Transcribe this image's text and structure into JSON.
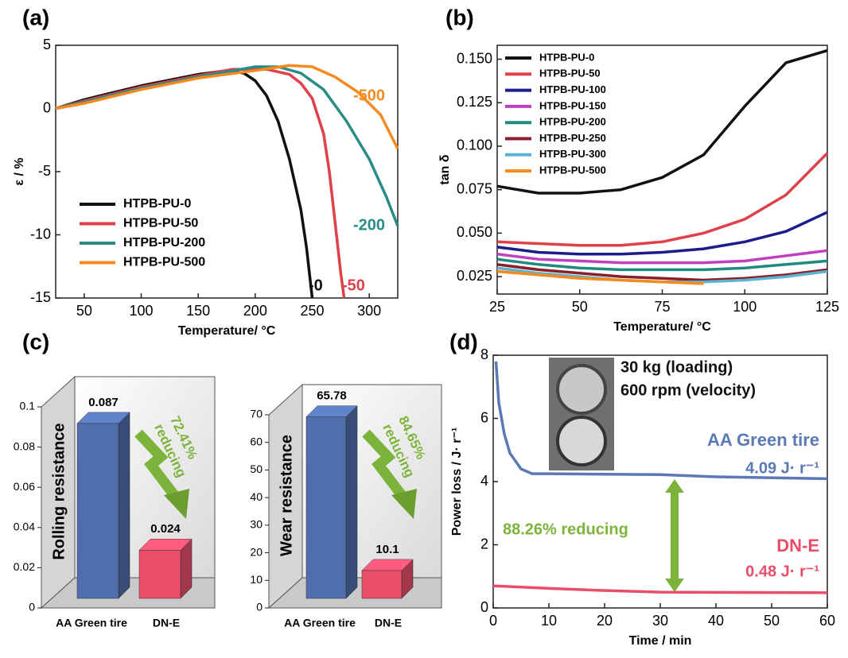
{
  "chart_data": [
    {
      "type": "line",
      "label": "(a)",
      "x_label": "Temperature/ °C",
      "y_label": "ε / %",
      "xlim": [
        25,
        325
      ],
      "xticks": [
        50,
        100,
        150,
        200,
        250,
        300
      ],
      "ylim": [
        -15,
        5
      ],
      "yticks": [
        -15,
        -10,
        -5,
        0,
        5
      ],
      "legend": "lower left",
      "series": [
        {
          "name": "HTPB-PU-0",
          "color": "#111111",
          "x": [
            25,
            50,
            100,
            150,
            175,
            190,
            200,
            210,
            220,
            230,
            240,
            245,
            250
          ],
          "values": [
            0,
            0.7,
            1.8,
            2.7,
            3.0,
            2.8,
            2.2,
            1.0,
            -1,
            -4,
            -8,
            -11,
            -15
          ]
        },
        {
          "name": "HTPB-PU-50",
          "color": "#e0404a",
          "x": [
            25,
            50,
            100,
            150,
            180,
            210,
            230,
            240,
            250,
            260,
            265,
            270,
            275,
            278
          ],
          "values": [
            0,
            0.6,
            1.7,
            2.6,
            3.1,
            3.1,
            2.7,
            2.0,
            0.8,
            -2,
            -5,
            -9,
            -13,
            -15
          ]
        },
        {
          "name": "HTPB-PU-200",
          "color": "#2a8c86",
          "x": [
            25,
            50,
            100,
            150,
            200,
            220,
            240,
            260,
            280,
            300,
            315,
            325
          ],
          "values": [
            0,
            0.5,
            1.6,
            2.5,
            3.3,
            3.3,
            2.8,
            1.5,
            -1,
            -4,
            -7,
            -9.3
          ]
        },
        {
          "name": "HTPB-PU-500",
          "color": "#f58a1f",
          "x": [
            25,
            50,
            100,
            150,
            200,
            230,
            250,
            270,
            290,
            310,
            325
          ],
          "values": [
            0,
            0.4,
            1.5,
            2.4,
            3.0,
            3.4,
            3.3,
            2.5,
            1.3,
            -0.5,
            -3.2
          ]
        }
      ],
      "annotations": [
        {
          "text": "-0",
          "color": "#111111"
        },
        {
          "text": "-50",
          "color": "#e0404a"
        },
        {
          "text": "-200",
          "color": "#2a8c86"
        },
        {
          "text": "-500",
          "color": "#f58a1f"
        }
      ]
    },
    {
      "type": "line",
      "label": "(b)",
      "x_label": "Temperature/ °C",
      "y_label": "tan δ",
      "xlim": [
        25,
        125
      ],
      "xticks": [
        25,
        50,
        75,
        100,
        125
      ],
      "ylim": [
        0.015,
        0.158
      ],
      "yticks": [
        0.025,
        {
          "value": 0.05,
          "label": "0.050"
        },
        0.075,
        {
          "value": 0.1,
          "label": "0.100"
        },
        0.125,
        {
          "value": 0.15,
          "label": "0.150"
        }
      ],
      "legend": "upper left",
      "x": [
        25,
        37.5,
        50,
        62.5,
        75,
        87.5,
        100,
        112.5,
        125
      ],
      "series": [
        {
          "name": "HTPB-PU-0",
          "color": "#111111",
          "values": [
            0.077,
            0.073,
            0.073,
            0.075,
            0.082,
            0.095,
            0.123,
            0.148,
            0.155
          ]
        },
        {
          "name": "HTPB-PU-50",
          "color": "#e0404a",
          "values": [
            0.045,
            0.044,
            0.043,
            0.043,
            0.045,
            0.05,
            0.058,
            0.072,
            0.096
          ]
        },
        {
          "name": "HTPB-PU-100",
          "color": "#1c1c8c",
          "values": [
            0.042,
            0.039,
            0.038,
            0.038,
            0.039,
            0.041,
            0.045,
            0.051,
            0.062
          ]
        },
        {
          "name": "HTPB-PU-150",
          "color": "#c040c0",
          "values": [
            0.038,
            0.035,
            0.034,
            0.033,
            0.033,
            0.033,
            0.034,
            0.037,
            0.04
          ]
        },
        {
          "name": "HTPB-PU-200",
          "color": "#1f8a80",
          "values": [
            0.035,
            0.032,
            0.03,
            0.029,
            0.029,
            0.029,
            0.03,
            0.032,
            0.034
          ]
        },
        {
          "name": "HTPB-PU-250",
          "color": "#8a1f2a",
          "values": [
            0.032,
            0.029,
            0.027,
            0.025,
            0.024,
            0.023,
            0.024,
            0.026,
            0.029
          ]
        },
        {
          "name": "HTPB-PU-300",
          "color": "#5ab4d0",
          "values": [
            0.03,
            0.027,
            0.025,
            0.023,
            0.022,
            0.022,
            0.023,
            0.025,
            0.028
          ]
        },
        {
          "name": "HTPB-PU-500",
          "color": "#f58a1f",
          "values": [
            0.028,
            0.026,
            0.024,
            0.023,
            0.022,
            0.021,
            null,
            null,
            null
          ]
        }
      ]
    },
    {
      "type": "bar",
      "label": "(c)",
      "y_label": "Rolling resistance",
      "categories": [
        "AA Green tire",
        "DN-E"
      ],
      "values": [
        0.087,
        0.024
      ],
      "colors": [
        "#4f6eab",
        "#e84d6a"
      ],
      "ylim": [
        0,
        0.1
      ],
      "yticks": [
        0,
        0.02,
        0.04,
        0.06,
        0.08,
        0.1
      ],
      "annotations": [
        {
          "text": "72.41%",
          "color": "#7cb33a"
        },
        {
          "text": "reducing",
          "color": "#7cb33a"
        }
      ]
    },
    {
      "type": "bar",
      "y_label": "Wear resistance",
      "categories": [
        "AA Green tire",
        "DN-E"
      ],
      "values": [
        65.78,
        10.1
      ],
      "colors": [
        "#4f6eab",
        "#e84d6a"
      ],
      "ylim": [
        0,
        70
      ],
      "yticks": [
        0,
        10,
        20,
        30,
        40,
        50,
        60,
        70
      ],
      "annotations": [
        {
          "text": "84.65%",
          "color": "#7cb33a"
        },
        {
          "text": "reducing",
          "color": "#7cb33a"
        }
      ]
    },
    {
      "type": "line",
      "label": "(d)",
      "x_label": "Time / min",
      "y_label": "Power loss / J· r⁻¹",
      "xlim": [
        0,
        60
      ],
      "xticks": [
        0,
        10,
        20,
        30,
        40,
        50,
        60
      ],
      "ylim": [
        0,
        8
      ],
      "yticks": [
        0,
        2,
        4,
        6,
        8
      ],
      "series": [
        {
          "name": "AA Green tire",
          "color": "#5b79b5",
          "x": [
            0.5,
            1,
            2,
            3,
            5,
            7,
            10,
            30,
            40,
            60
          ],
          "values": [
            7.8,
            6.5,
            5.5,
            4.9,
            4.4,
            4.25,
            4.25,
            4.22,
            4.15,
            4.09
          ]
        },
        {
          "name": "DN-E",
          "color": "#e84d6a",
          "x": [
            0,
            10,
            20,
            30,
            60
          ],
          "values": [
            0.7,
            0.62,
            0.55,
            0.5,
            0.48
          ]
        }
      ],
      "annotations": [
        {
          "text": "30 kg (loading)",
          "color": "#111111"
        },
        {
          "text": "600 rpm (velocity)",
          "color": "#111111"
        },
        {
          "text": "4.09 J· r⁻¹",
          "color": "#5b79b5"
        },
        {
          "text": "0.48 J· r⁻¹",
          "color": "#e84d6a"
        },
        {
          "text": "88.26% reducing",
          "color": "#7cb33a"
        }
      ]
    }
  ]
}
